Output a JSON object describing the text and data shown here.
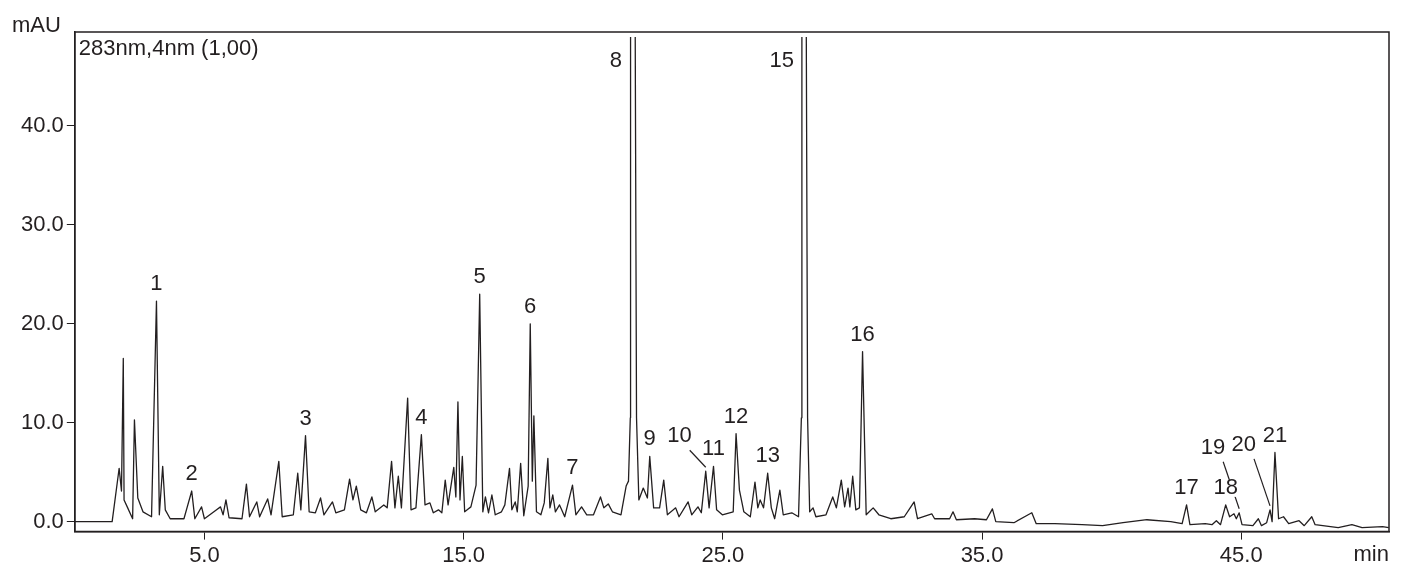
{
  "chart_data": {
    "type": "line",
    "xlabel": "min",
    "ylabel": "mAU",
    "grid": false,
    "legend": false,
    "marker": "none",
    "line_style": "solid",
    "xlim": [
      0,
      50.7
    ],
    "ylim": [
      -1,
      49.5
    ],
    "xticks": [
      {
        "value": 5,
        "label": "5.0"
      },
      {
        "value": 15,
        "label": "15.0"
      },
      {
        "value": 25,
        "label": "25.0"
      },
      {
        "value": 35,
        "label": "35.0"
      },
      {
        "value": 45,
        "label": "45.0"
      }
    ],
    "yticks": [
      {
        "value": 0,
        "label": "0.0"
      },
      {
        "value": 10,
        "label": "10.0"
      },
      {
        "value": 20,
        "label": "20.0"
      },
      {
        "value": 30,
        "label": "30.0"
      },
      {
        "value": 40,
        "label": "40.0"
      }
    ],
    "x": [
      0,
      1.44,
      1.71,
      1.8,
      1.87,
      1.9,
      2.04,
      2.23,
      2.3,
      2.43,
      2.63,
      2.96,
      3.15,
      3.26,
      3.39,
      3.49,
      3.68,
      4.21,
      4.51,
      4.63,
      4.89,
      5.0,
      5.62,
      5.72,
      5.83,
      5.95,
      6.45,
      6.62,
      6.74,
      7.02,
      7.13,
      7.44,
      7.57,
      7.87,
      8.0,
      8.43,
      8.6,
      8.72,
      8.9,
      9.04,
      9.28,
      9.48,
      9.61,
      9.94,
      10.07,
      10.4,
      10.6,
      10.73,
      10.86,
      11.03,
      11.25,
      11.46,
      11.59,
      11.92,
      12.05,
      12.22,
      12.35,
      12.48,
      12.6,
      12.84,
      12.97,
      13.16,
      13.37,
      13.51,
      13.7,
      13.83,
      14.03,
      14.16,
      14.29,
      14.4,
      14.62,
      14.7,
      14.78,
      14.86,
      14.95,
      15.04,
      15.28,
      15.48,
      15.62,
      15.74,
      15.84,
      15.96,
      16.09,
      16.22,
      16.46,
      16.59,
      16.77,
      16.86,
      16.99,
      17.07,
      17.2,
      17.32,
      17.49,
      17.57,
      17.65,
      17.71,
      17.81,
      17.98,
      18.11,
      18.25,
      18.33,
      18.44,
      18.54,
      18.7,
      18.9,
      19.2,
      19.33,
      19.55,
      19.75,
      20.01,
      20.28,
      20.41,
      20.58,
      20.74,
      21.07,
      21.27,
      21.36,
      21.43,
      21.44,
      21.5,
      21.62,
      21.67,
      21.76,
      21.93,
      22.09,
      22.18,
      22.33,
      22.56,
      22.72,
      22.86,
      23.18,
      23.31,
      23.66,
      23.8,
      24.04,
      24.17,
      24.34,
      24.47,
      24.64,
      24.76,
      24.98,
      25.4,
      25.51,
      25.64,
      25.81,
      26.06,
      26.24,
      26.35,
      26.44,
      26.57,
      26.73,
      26.87,
      27.0,
      27.2,
      27.33,
      27.66,
      27.92,
      28.03,
      28.05,
      28.13,
      28.22,
      28.27,
      28.35,
      28.48,
      28.59,
      28.98,
      29.24,
      29.38,
      29.57,
      29.7,
      29.83,
      29.9,
      30.01,
      30.13,
      30.27,
      30.39,
      30.53,
      30.8,
      31.02,
      31.48,
      32.0,
      32.38,
      32.51,
      33.06,
      33.17,
      33.75,
      33.88,
      34.01,
      34.71,
      35.17,
      35.4,
      35.53,
      36.23,
      36.92,
      37.09,
      37.81,
      38.86,
      39.65,
      40.44,
      41.36,
      42.28,
      42.72,
      42.89,
      43.02,
      43.61,
      43.87,
      44.04,
      44.2,
      44.4,
      44.55,
      44.72,
      44.81,
      44.92,
      45.03,
      45.45,
      45.66,
      45.78,
      45.98,
      46.11,
      46.19,
      46.3,
      46.44,
      46.63,
      46.83,
      47.23,
      47.43,
      47.72,
      47.85,
      48.74,
      49.27,
      49.66,
      50.45,
      50.69
    ],
    "series": [
      {
        "color": "#231f20",
        "values": [
          0,
          0,
          5.4,
          3.1,
          16.5,
          2.2,
          1.4,
          0.3,
          10.3,
          2.4,
          1.0,
          0.5,
          22.3,
          0.7,
          5.6,
          1.2,
          0.3,
          0.3,
          3.1,
          0.3,
          1.5,
          0.3,
          1.5,
          0.7,
          2.2,
          0.4,
          0.3,
          3.8,
          0.5,
          2.0,
          0.5,
          2.3,
          0.7,
          6.1,
          0.5,
          0.7,
          4.9,
          1.2,
          8.7,
          1.0,
          0.9,
          2.4,
          0.7,
          2.0,
          0.9,
          1.2,
          4.3,
          2.2,
          3.6,
          1.2,
          0.9,
          2.5,
          1.0,
          1.7,
          1.4,
          6.1,
          1.4,
          4.6,
          1.4,
          12.5,
          1.2,
          1.4,
          8.8,
          1.7,
          1.9,
          0.9,
          1.2,
          0.9,
          4.2,
          1.7,
          5.5,
          2.5,
          12.1,
          2.2,
          6.6,
          1.0,
          1.5,
          3.7,
          23.0,
          1.0,
          2.5,
          0.9,
          2.7,
          0.7,
          1.0,
          1.7,
          5.4,
          1.2,
          2.0,
          1.0,
          5.9,
          0.6,
          3.6,
          20.0,
          4.1,
          10.7,
          1.0,
          0.7,
          1.9,
          6.4,
          1.4,
          2.7,
          1.0,
          1.7,
          0.5,
          3.7,
          0.7,
          1.5,
          0.7,
          0.7,
          2.5,
          1.4,
          1.8,
          1.0,
          0.7,
          3.6,
          4.1,
          10.5,
          49.0,
          null,
          49.0,
          10.5,
          2.2,
          3.4,
          2.4,
          6.6,
          1.4,
          1.4,
          4.2,
          0.7,
          1.4,
          0.5,
          2.0,
          0.7,
          1.5,
          0.9,
          5.1,
          1.4,
          5.6,
          1.2,
          0.7,
          1.0,
          8.9,
          3.2,
          1.0,
          0.5,
          4.0,
          1.4,
          2.2,
          1.4,
          4.9,
          1.4,
          0.3,
          3.2,
          0.7,
          0.9,
          0.5,
          10.5,
          49.0,
          null,
          49.0,
          10.5,
          1.0,
          1.4,
          0.5,
          0.7,
          2.5,
          1.4,
          4.2,
          1.5,
          3.4,
          1.5,
          4.6,
          1.2,
          1.4,
          17.2,
          0.7,
          1.4,
          0.7,
          0.3,
          0.5,
          2.0,
          0.3,
          0.8,
          0.3,
          0.3,
          1.0,
          0.2,
          0.3,
          0.2,
          1.3,
          0,
          -0.1,
          0.9,
          -0.2,
          -0.2,
          -0.3,
          -0.4,
          -0.1,
          0.2,
          0,
          -0.2,
          1.7,
          -0.3,
          -0.2,
          -0.3,
          0.1,
          -0.3,
          1.7,
          0.5,
          0.8,
          0.3,
          0.9,
          -0.3,
          -0.4,
          0.3,
          -0.4,
          -0.1,
          1.2,
          0,
          7.0,
          0.3,
          0.5,
          -0.2,
          0.1,
          -0.4,
          0.5,
          -0.3,
          -0.6,
          -0.3,
          -0.6,
          -0.5,
          -0.6
        ]
      }
    ],
    "annotations": [
      "283nm,4nm (1,00)",
      {
        "text": "1",
        "x": 3.15,
        "y": 22.3
      },
      {
        "text": "2",
        "x": 4.51,
        "y": 3.1
      },
      {
        "text": "3",
        "x": 8.9,
        "y": 8.7
      },
      {
        "text": "4",
        "x": 13.37,
        "y": 8.8
      },
      {
        "text": "5",
        "x": 15.62,
        "y": 23.0
      },
      {
        "text": "6",
        "x": 17.57,
        "y": 20.0
      },
      {
        "text": "7",
        "x": 19.2,
        "y": 3.7
      },
      {
        "text": "8",
        "x": 21.5,
        "y": 49.0
      },
      {
        "text": "9",
        "x": 22.18,
        "y": 6.6
      },
      {
        "text": "10",
        "x": 24.34,
        "y": 5.1
      },
      {
        "text": "11",
        "x": 24.64,
        "y": 5.6
      },
      {
        "text": "12",
        "x": 25.51,
        "y": 8.9
      },
      {
        "text": "13",
        "x": 26.73,
        "y": 4.9
      },
      {
        "text": "15",
        "x": 28.13,
        "y": 49.0
      },
      {
        "text": "16",
        "x": 30.39,
        "y": 17.2
      },
      {
        "text": "17",
        "x": 42.89,
        "y": 1.7
      },
      {
        "text": "18",
        "x": 44.4,
        "y": 1.7
      },
      {
        "text": "19",
        "x": 44.92,
        "y": 0.9
      },
      {
        "text": "20",
        "x": 46.11,
        "y": 1.2
      },
      {
        "text": "21",
        "x": 46.3,
        "y": 7.0
      }
    ]
  }
}
